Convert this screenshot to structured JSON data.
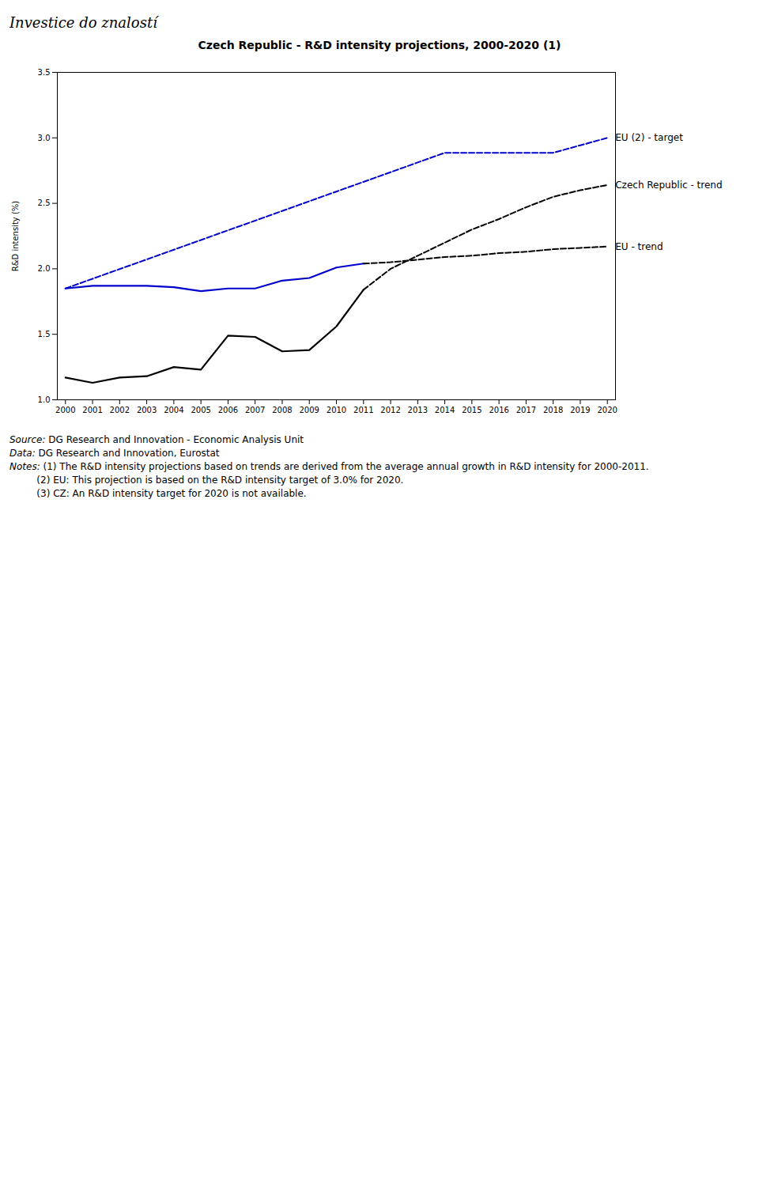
{
  "chart_data": {
    "type": "line",
    "heading": "Investice do znalostí",
    "title": "Czech Republic - R&D intensity projections, 2000-2020 (1)",
    "ylabel": "R&D intensity (%)",
    "xlim": [
      1999.7,
      2020.3
    ],
    "xticks": [
      2000,
      2001,
      2002,
      2003,
      2004,
      2005,
      2006,
      2007,
      2008,
      2009,
      2010,
      2011,
      2012,
      2013,
      2014,
      2015,
      2016,
      2017,
      2018,
      2019,
      2020
    ],
    "ylim": [
      1.0,
      3.5
    ],
    "yticks": [
      {
        "value": 1.0,
        "label": "1.0"
      },
      1.5,
      {
        "value": 2.0,
        "label": "2.0"
      },
      2.5,
      {
        "value": 3.0,
        "label": "3.0"
      },
      3.5
    ],
    "grid": false,
    "series": [
      {
        "name": "EU (2) - target",
        "color": "#0000cc",
        "line_style": "dashed",
        "x": [
          2000,
          2001,
          2002,
          2003,
          2004,
          2005,
          2006,
          2007,
          2008,
          2009,
          2010,
          2011,
          2012,
          2013,
          2014,
          2015,
          2016,
          2017,
          2018,
          2019,
          2020
        ],
        "values": [
          1.85,
          1.924,
          1.998,
          2.072,
          2.146,
          2.22,
          2.294,
          2.368,
          2.442,
          2.516,
          2.59,
          2.664,
          2.738,
          2.812,
          2.886,
          2.886,
          2.886,
          2.886,
          2.886,
          2.943,
          3.0
        ]
      },
      {
        "color": "#0000cc",
        "line_style": "solid",
        "x": [
          2000,
          2001,
          2002,
          2003,
          2004,
          2005,
          2006,
          2007,
          2008,
          2009,
          2010,
          2011
        ],
        "values": [
          1.85,
          1.87,
          1.87,
          1.87,
          1.86,
          1.83,
          1.85,
          1.85,
          1.91,
          1.93,
          2.01,
          2.04
        ]
      },
      {
        "name": "EU - trend",
        "color": "#000000",
        "line_style": "dashed",
        "x": [
          2011,
          2012,
          2013,
          2014,
          2015,
          2016,
          2017,
          2018,
          2019,
          2020
        ],
        "values": [
          2.04,
          2.05,
          2.07,
          2.09,
          2.1,
          2.12,
          2.13,
          2.15,
          2.16,
          2.17
        ]
      },
      {
        "color": "#000000",
        "line_style": "solid",
        "x": [
          2000,
          2001,
          2002,
          2003,
          2004,
          2005,
          2006,
          2007,
          2008,
          2009,
          2010,
          2011
        ],
        "values": [
          1.17,
          1.13,
          1.17,
          1.18,
          1.25,
          1.23,
          1.49,
          1.48,
          1.37,
          1.38,
          1.56,
          1.84
        ]
      },
      {
        "name": "Czech Republic - trend",
        "color": "#000000",
        "line_style": "dashed",
        "x": [
          2011,
          2012,
          2013,
          2014,
          2015,
          2016,
          2017,
          2018,
          2019,
          2020
        ],
        "values": [
          1.84,
          2.0,
          2.1,
          2.2,
          2.3,
          2.38,
          2.47,
          2.55,
          2.6,
          2.64
        ]
      }
    ],
    "notes": [
      {
        "label": "Source:",
        "text": " DG Research and Innovation - Economic Analysis Unit"
      },
      {
        "label": "Data:",
        "text": " DG Research and Innovation, Eurostat"
      },
      {
        "label": "Notes:",
        "text": " (1) The R&D intensity projections based on trends are derived from the average annual growth in R&D intensity for 2000-2011."
      },
      {
        "text": "         (2) EU: This projection is based on the R&D intensity target of 3.0% for 2020."
      },
      {
        "text": "         (3) CZ: An R&D intensity target for 2020 is not available."
      }
    ]
  }
}
